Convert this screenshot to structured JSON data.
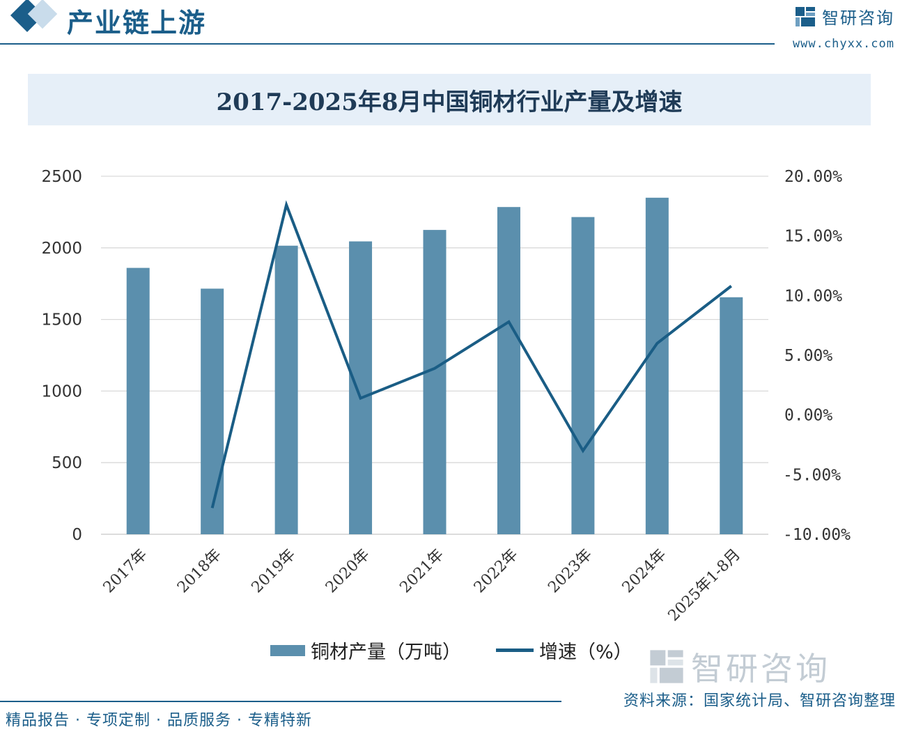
{
  "header": {
    "section_title": "产业链上游",
    "brand_name": "智研咨询",
    "brand_url": "www.chyxx.com"
  },
  "chart_title": "2017-2025年8月中国铜材行业产量及增速",
  "chart_data": {
    "type": "bar",
    "title": "2017-2025年8月中国铜材行业产量及增速",
    "categories": [
      "2017年",
      "2018年",
      "2019年",
      "2020年",
      "2021年",
      "2022年",
      "2023年",
      "2024年",
      "2025年1-8月"
    ],
    "series": [
      {
        "name": "铜材产量（万吨）",
        "type": "bar",
        "axis": "left",
        "values": [
          1860,
          1715,
          2015,
          2045,
          2125,
          2285,
          2215,
          2350,
          1655
        ]
      },
      {
        "name": "增速（%）",
        "type": "line",
        "axis": "right",
        "values": [
          null,
          -7.8,
          17.6,
          1.4,
          3.9,
          7.8,
          -3.0,
          6.0,
          10.8
        ]
      }
    ],
    "y_left": {
      "ylim": [
        0,
        2500
      ],
      "ticks": [
        "0",
        "500",
        "1000",
        "1500",
        "2000",
        "2500"
      ]
    },
    "y_right": {
      "ylim": [
        -10,
        20
      ],
      "ticks": [
        "-10.00%",
        "-5.00%",
        "0.00%",
        "5.00%",
        "10.00%",
        "15.00%",
        "20.00%"
      ]
    },
    "grid": true,
    "legend": "bottom",
    "colors": {
      "bar": "#5b8fad",
      "line": "#1a5d85",
      "grid": "#d9d9d9"
    }
  },
  "legend": {
    "bar_label": "铜材产量（万吨）",
    "line_label": "增速（%）"
  },
  "footer": {
    "left_text": "精品报告 · 专项定制 · 品质服务 · 专精特新",
    "source_text": "资料来源：国家统计局、智研咨询整理"
  }
}
